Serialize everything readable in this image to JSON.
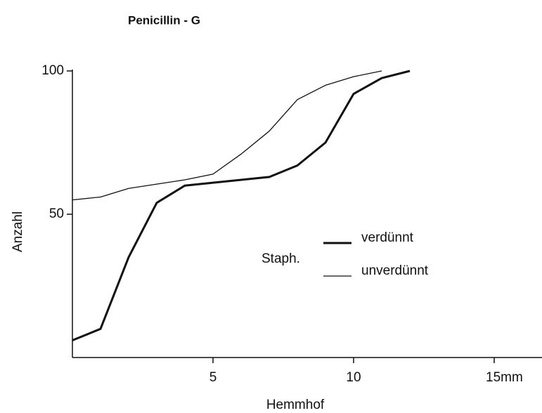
{
  "chart_data": {
    "type": "line",
    "title": "Penicillin - G",
    "x_label": "Hemmhof",
    "y_label": "Anzahl",
    "legend_title": "Staph.",
    "xlim": [
      0,
      16.7
    ],
    "ylim": [
      0,
      100
    ],
    "xticks": [
      5,
      10,
      {
        "value": 15,
        "label": "15mm"
      }
    ],
    "yticks": [
      50,
      100
    ],
    "series": [
      {
        "name": "verdünnt",
        "color": "#111111",
        "width": "thick",
        "x": [
          0,
          1,
          2,
          3,
          4,
          5,
          7,
          8,
          9,
          10,
          11,
          12
        ],
        "values": [
          6,
          10,
          35,
          54,
          60,
          61,
          63,
          67,
          75,
          92,
          97.5,
          100
        ]
      },
      {
        "name": "unverdünnt",
        "color": "#111111",
        "width": "thin",
        "x": [
          0,
          1,
          2,
          3,
          4,
          5,
          6,
          7,
          8,
          9,
          10,
          11
        ],
        "values": [
          55,
          56,
          59,
          60.5,
          62,
          64,
          71,
          79,
          90,
          95,
          98,
          100
        ]
      }
    ]
  }
}
